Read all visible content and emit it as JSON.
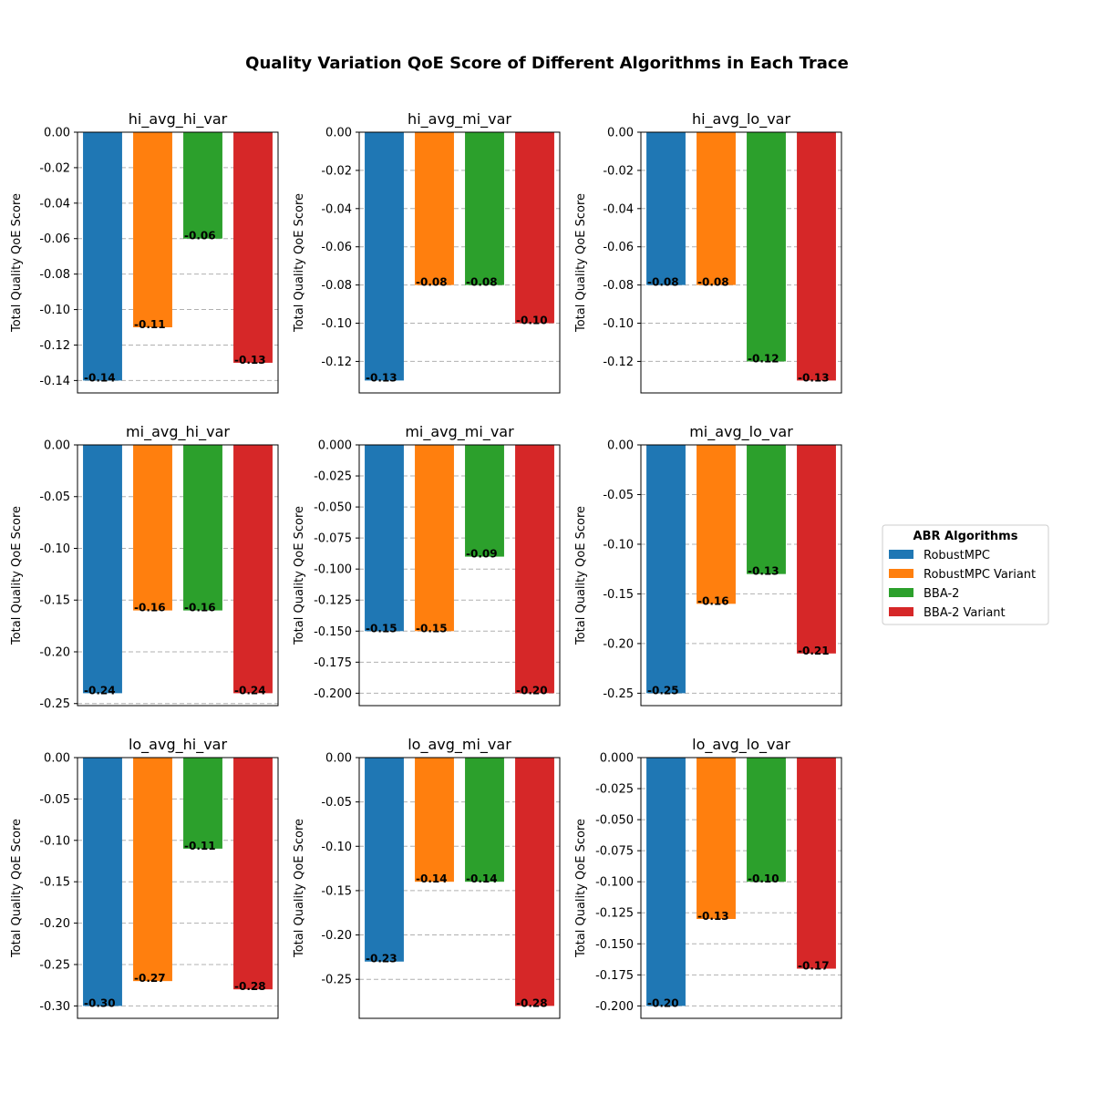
{
  "chart_data": {
    "type": "bar",
    "title": "Quality Variation QoE Score of Different Algorithms in Each Trace",
    "ylabel": "Total Quality QoE Score",
    "grid": "y-dashed",
    "legend": {
      "title": "ABR Algorithms",
      "placement": "right",
      "entries": [
        "RobustMPC",
        "RobustMPC Variant",
        "BBA-2",
        "BBA-2 Variant"
      ]
    },
    "colors": [
      "#1f77b4",
      "#ff7f0e",
      "#2ca02c",
      "#d62728"
    ],
    "panels": [
      {
        "title": "hi_avg_hi_var",
        "values": [
          -0.14,
          -0.11,
          -0.06,
          -0.13
        ],
        "labels": [
          "-0.14",
          "-0.11",
          "-0.06",
          "-0.13"
        ],
        "ylim": [
          -0.147,
          0.0
        ],
        "ticks": [
          "0.00",
          "-0.02",
          "-0.04",
          "-0.06",
          "-0.08",
          "-0.10",
          "-0.12",
          "-0.14"
        ]
      },
      {
        "title": "hi_avg_mi_var",
        "values": [
          -0.13,
          -0.08,
          -0.08,
          -0.1
        ],
        "labels": [
          "-0.13",
          "-0.08",
          "-0.08",
          "-0.10"
        ],
        "ylim": [
          -0.1365,
          0.0
        ],
        "ticks": [
          "0.00",
          "-0.02",
          "-0.04",
          "-0.06",
          "-0.08",
          "-0.10",
          "-0.12"
        ]
      },
      {
        "title": "hi_avg_lo_var",
        "values": [
          -0.08,
          -0.08,
          -0.12,
          -0.13
        ],
        "labels": [
          "-0.08",
          "-0.08",
          "-0.12",
          "-0.13"
        ],
        "ylim": [
          -0.1365,
          0.0
        ],
        "ticks": [
          "0.00",
          "-0.02",
          "-0.04",
          "-0.06",
          "-0.08",
          "-0.10",
          "-0.12"
        ]
      },
      {
        "title": "mi_avg_hi_var",
        "values": [
          -0.24,
          -0.16,
          -0.16,
          -0.24
        ],
        "labels": [
          "-0.24",
          "-0.16",
          "-0.16",
          "-0.24"
        ],
        "ylim": [
          -0.252,
          0.0
        ],
        "ticks": [
          "0.00",
          "-0.05",
          "-0.10",
          "-0.15",
          "-0.20",
          "-0.25"
        ]
      },
      {
        "title": "mi_avg_mi_var",
        "values": [
          -0.15,
          -0.15,
          -0.09,
          -0.2
        ],
        "labels": [
          "-0.15",
          "-0.15",
          "-0.09",
          "-0.20"
        ],
        "ylim": [
          -0.21,
          0.0
        ],
        "ticks": [
          "0.000",
          "-0.025",
          "-0.050",
          "-0.075",
          "-0.100",
          "-0.125",
          "-0.150",
          "-0.175",
          "-0.200"
        ]
      },
      {
        "title": "mi_avg_lo_var",
        "values": [
          -0.25,
          -0.16,
          -0.13,
          -0.21
        ],
        "labels": [
          "-0.25",
          "-0.16",
          "-0.13",
          "-0.21"
        ],
        "ylim": [
          -0.2625,
          0.0
        ],
        "ticks": [
          "0.00",
          "-0.05",
          "-0.10",
          "-0.15",
          "-0.20",
          "-0.25"
        ]
      },
      {
        "title": "lo_avg_hi_var",
        "values": [
          -0.3,
          -0.27,
          -0.11,
          -0.28
        ],
        "labels": [
          "-0.30",
          "-0.27",
          "-0.11",
          "-0.28"
        ],
        "ylim": [
          -0.315,
          0.0
        ],
        "ticks": [
          "0.00",
          "-0.05",
          "-0.10",
          "-0.15",
          "-0.20",
          "-0.25",
          "-0.30"
        ]
      },
      {
        "title": "lo_avg_mi_var",
        "values": [
          -0.23,
          -0.14,
          -0.14,
          -0.28
        ],
        "labels": [
          "-0.23",
          "-0.14",
          "-0.14",
          "-0.28"
        ],
        "ylim": [
          -0.294,
          0.0
        ],
        "ticks": [
          "0.00",
          "-0.05",
          "-0.10",
          "-0.15",
          "-0.20",
          "-0.25"
        ]
      },
      {
        "title": "lo_avg_lo_var",
        "values": [
          -0.2,
          -0.13,
          -0.1,
          -0.17
        ],
        "labels": [
          "-0.20",
          "-0.13",
          "-0.10",
          "-0.17"
        ],
        "ylim": [
          -0.21,
          0.0
        ],
        "ticks": [
          "0.000",
          "-0.025",
          "-0.050",
          "-0.075",
          "-0.100",
          "-0.125",
          "-0.150",
          "-0.175",
          "-0.200"
        ]
      }
    ]
  }
}
